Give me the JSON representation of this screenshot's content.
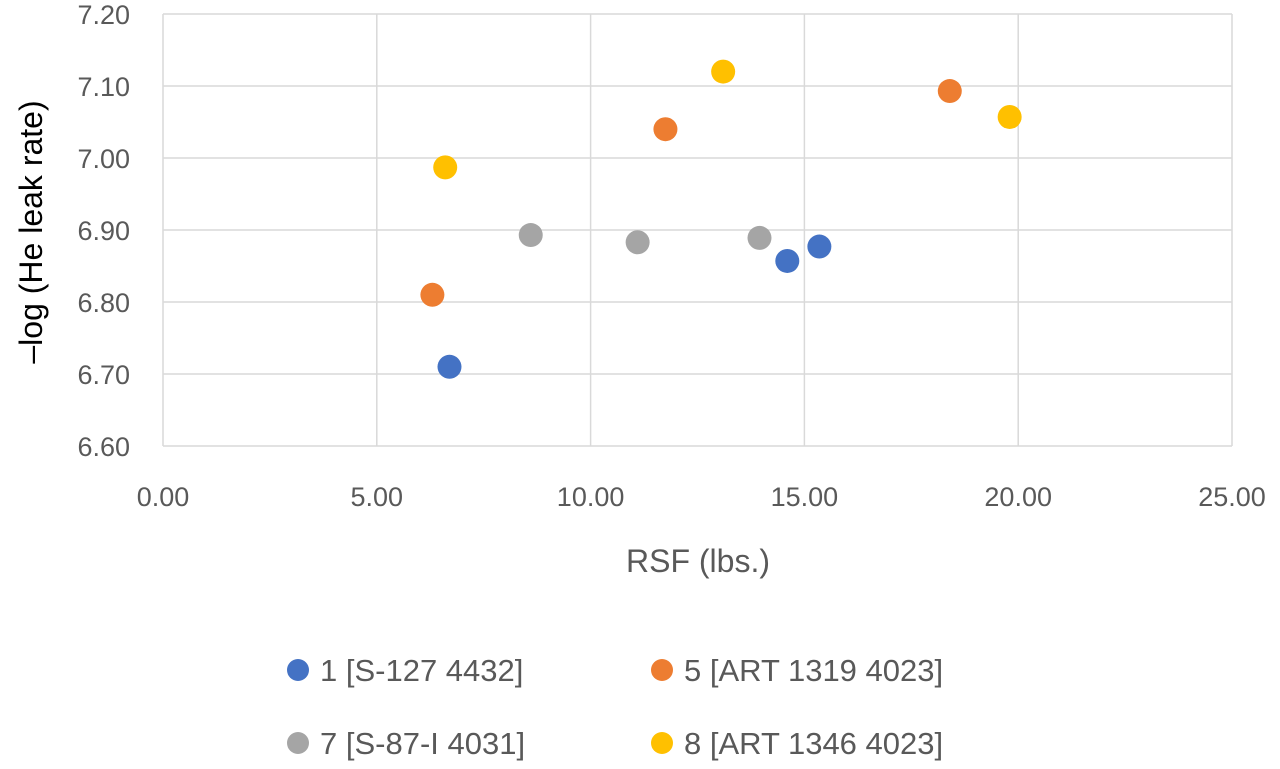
{
  "chart_data": {
    "type": "scatter",
    "title": "",
    "xlabel": "RSF (lbs.)",
    "ylabel": "–log (He leak rate)",
    "xlim": [
      0,
      25
    ],
    "ylim": [
      6.6,
      7.2
    ],
    "x_ticks": [
      "0.00",
      "5.00",
      "10.00",
      "15.00",
      "20.00",
      "25.00"
    ],
    "y_ticks": [
      "6.60",
      "6.70",
      "6.80",
      "6.90",
      "7.00",
      "7.10",
      "7.20"
    ],
    "grid": true,
    "legend_position": "bottom",
    "series": [
      {
        "name": "1 [S-127 4432]",
        "color": "#4472c4",
        "points": [
          {
            "x": 6.7,
            "y": 6.71
          },
          {
            "x": 14.6,
            "y": 6.857
          },
          {
            "x": 15.35,
            "y": 6.877
          }
        ]
      },
      {
        "name": "5 [ART 1319 4023]",
        "color": "#ed7d31",
        "points": [
          {
            "x": 6.3,
            "y": 6.81
          },
          {
            "x": 11.75,
            "y": 7.04
          },
          {
            "x": 18.4,
            "y": 7.093
          }
        ]
      },
      {
        "name": "7 [S-87-I 4031]",
        "color": "#a5a5a5",
        "points": [
          {
            "x": 8.6,
            "y": 6.893
          },
          {
            "x": 11.1,
            "y": 6.883
          },
          {
            "x": 13.95,
            "y": 6.889
          }
        ]
      },
      {
        "name": "8 [ART 1346 4023]",
        "color": "#ffc000",
        "points": [
          {
            "x": 6.6,
            "y": 6.987
          },
          {
            "x": 13.1,
            "y": 7.12
          },
          {
            "x": 19.8,
            "y": 7.057
          }
        ]
      }
    ]
  }
}
